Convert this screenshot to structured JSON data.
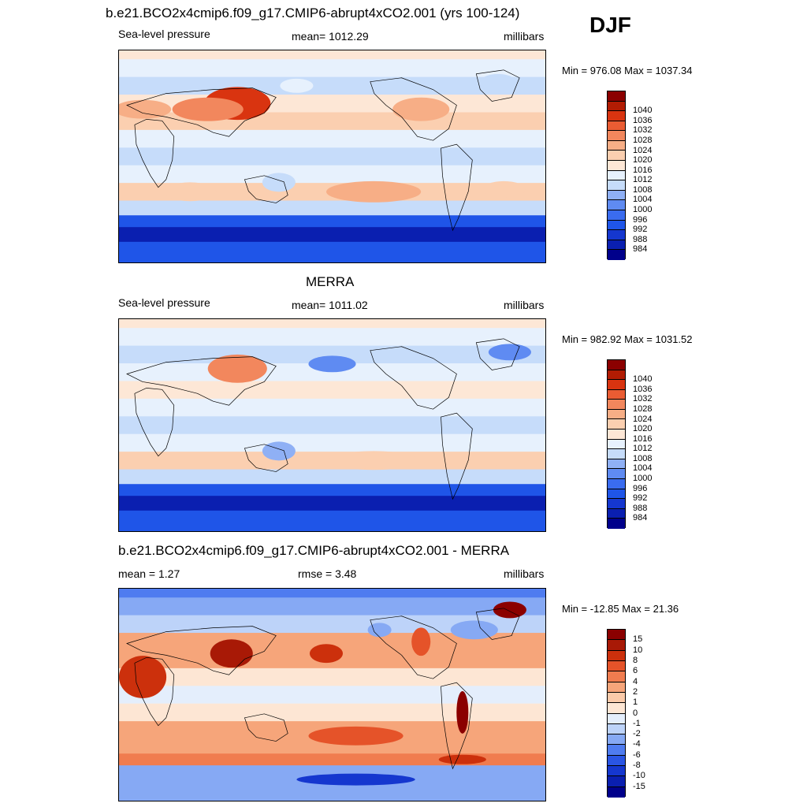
{
  "season": "DJF",
  "palettes": {
    "slp": [
      "#00008b",
      "#0a1fb0",
      "#1537cf",
      "#1f55e8",
      "#3a6cf0",
      "#5f8bf2",
      "#8fb0f5",
      "#c6dcfa",
      "#e7f1fd",
      "#fde7d6",
      "#fbcfb0",
      "#f7ae86",
      "#f2875d",
      "#ea5c33",
      "#d93410",
      "#b21c03",
      "#8b0000"
    ],
    "diff": [
      "#00008b",
      "#0a1fb0",
      "#1537cf",
      "#2a55e4",
      "#4f7cf0",
      "#86a9f4",
      "#bdd3f9",
      "#e4eefc",
      "#fde6d4",
      "#fbcaa9",
      "#f6a57a",
      "#f07c4f",
      "#e55329",
      "#cc300c",
      "#a81906",
      "#8b0000"
    ]
  },
  "panels": [
    {
      "title": "b.e21.BCO2x4cmip6.f09_g17.CMIP6-abrupt4xCO2.001 (yrs 100-124)",
      "left_label": "Sea-level pressure",
      "center_label": "mean= 1012.29",
      "right_label": "millibars",
      "minmax": "Min = 976.08 Max = 1037.34",
      "palette": "slp",
      "levels": [
        "984",
        "988",
        "992",
        "996",
        "1000",
        "1004",
        "1008",
        "1012",
        "1016",
        "1020",
        "1024",
        "1028",
        "1032",
        "1036",
        "1040"
      ],
      "zonal_profile": [
        {
          "lat": 90,
          "v": 1016
        },
        {
          "lat": 75,
          "v": 1012
        },
        {
          "lat": 60,
          "v": 1008
        },
        {
          "lat": 45,
          "v": 1017
        },
        {
          "lat": 30,
          "v": 1020
        },
        {
          "lat": 15,
          "v": 1013
        },
        {
          "lat": 0,
          "v": 1010
        },
        {
          "lat": -15,
          "v": 1013
        },
        {
          "lat": -30,
          "v": 1021
        },
        {
          "lat": -45,
          "v": 1010
        },
        {
          "lat": -55,
          "v": 994
        },
        {
          "lat": -65,
          "v": 984
        },
        {
          "lat": -80,
          "v": 994
        }
      ],
      "features": [
        {
          "lon": 100,
          "lat": 45,
          "rx": 28,
          "ry": 14,
          "v": 1037
        },
        {
          "lon": 75,
          "lat": 40,
          "rx": 30,
          "ry": 10,
          "v": 1030
        },
        {
          "lon": 20,
          "lat": 40,
          "rx": 24,
          "ry": 8,
          "v": 1025
        },
        {
          "lon": 255,
          "lat": 40,
          "rx": 24,
          "ry": 10,
          "v": 1025
        },
        {
          "lon": 150,
          "lat": 60,
          "rx": 14,
          "ry": 6,
          "v": 1014
        },
        {
          "lon": 320,
          "lat": 62,
          "rx": 16,
          "ry": 8,
          "v": 1009
        },
        {
          "lon": 215,
          "lat": -30,
          "rx": 40,
          "ry": 9,
          "v": 1024
        },
        {
          "lon": 60,
          "lat": -30,
          "rx": 22,
          "ry": 8,
          "v": 1022
        },
        {
          "lon": 325,
          "lat": -28,
          "rx": 18,
          "ry": 7,
          "v": 1022
        },
        {
          "lon": 135,
          "lat": -22,
          "rx": 14,
          "ry": 8,
          "v": 1008
        }
      ]
    },
    {
      "title": "MERRA",
      "left_label": "Sea-level pressure",
      "center_label": "mean= 1011.02",
      "right_label": "millibars",
      "minmax": "Min = 982.92 Max = 1031.52",
      "palette": "slp",
      "levels": [
        "984",
        "988",
        "992",
        "996",
        "1000",
        "1004",
        "1008",
        "1012",
        "1016",
        "1020",
        "1024",
        "1028",
        "1032",
        "1036",
        "1040"
      ],
      "zonal_profile": [
        {
          "lat": 90,
          "v": 1018
        },
        {
          "lat": 75,
          "v": 1014
        },
        {
          "lat": 60,
          "v": 1010
        },
        {
          "lat": 45,
          "v": 1015
        },
        {
          "lat": 30,
          "v": 1019
        },
        {
          "lat": 15,
          "v": 1012
        },
        {
          "lat": 0,
          "v": 1010
        },
        {
          "lat": -15,
          "v": 1012
        },
        {
          "lat": -30,
          "v": 1020
        },
        {
          "lat": -45,
          "v": 1009
        },
        {
          "lat": -55,
          "v": 992
        },
        {
          "lat": -65,
          "v": 985
        },
        {
          "lat": -80,
          "v": 993
        }
      ],
      "features": [
        {
          "lon": 100,
          "lat": 48,
          "rx": 25,
          "ry": 12,
          "v": 1031
        },
        {
          "lon": 180,
          "lat": 52,
          "rx": 20,
          "ry": 7,
          "v": 1000
        },
        {
          "lon": 330,
          "lat": 62,
          "rx": 18,
          "ry": 7,
          "v": 1000
        },
        {
          "lon": 215,
          "lat": -30,
          "rx": 38,
          "ry": 8,
          "v": 1023
        },
        {
          "lon": 330,
          "lat": -30,
          "rx": 16,
          "ry": 6,
          "v": 1023
        },
        {
          "lon": 135,
          "lat": -22,
          "rx": 14,
          "ry": 8,
          "v": 1006
        }
      ]
    },
    {
      "title": "b.e21.BCO2x4cmip6.f09_g17.CMIP6-abrupt4xCO2.001 - MERRA",
      "left_label": "mean =   1.27",
      "center_label": "rmse =   3.48",
      "right_label": "millibars",
      "minmax": "Min = -12.85 Max =  21.36",
      "palette": "diff",
      "levels": [
        "-15",
        "-10",
        "-8",
        "-6",
        "-4",
        "-2",
        "-1",
        "0",
        "1",
        "2",
        "4",
        "6",
        "8",
        "10",
        "15"
      ],
      "zonal_profile": [
        {
          "lat": 90,
          "v": -6
        },
        {
          "lat": 75,
          "v": -4
        },
        {
          "lat": 60,
          "v": -2
        },
        {
          "lat": 45,
          "v": 2
        },
        {
          "lat": 30,
          "v": 2
        },
        {
          "lat": 15,
          "v": 0.5
        },
        {
          "lat": 0,
          "v": -0.5
        },
        {
          "lat": -15,
          "v": 0.5
        },
        {
          "lat": -30,
          "v": 3
        },
        {
          "lat": -45,
          "v": 3
        },
        {
          "lat": -55,
          "v": 5
        },
        {
          "lat": -65,
          "v": -3
        },
        {
          "lat": -80,
          "v": -4
        }
      ],
      "features": [
        {
          "lon": 290,
          "lat": -15,
          "rx": 5,
          "ry": 18,
          "v": 15
        },
        {
          "lon": 330,
          "lat": 72,
          "rx": 14,
          "ry": 7,
          "v": 15
        },
        {
          "lon": 95,
          "lat": 35,
          "rx": 18,
          "ry": 12,
          "v": 10
        },
        {
          "lon": 20,
          "lat": 15,
          "rx": 20,
          "ry": 18,
          "v": 8
        },
        {
          "lon": 175,
          "lat": 35,
          "rx": 14,
          "ry": 8,
          "v": 8
        },
        {
          "lon": 255,
          "lat": 45,
          "rx": 8,
          "ry": 12,
          "v": 6
        },
        {
          "lon": 220,
          "lat": 55,
          "rx": 10,
          "ry": 6,
          "v": -4
        },
        {
          "lon": 300,
          "lat": 55,
          "rx": 20,
          "ry": 8,
          "v": -4
        },
        {
          "lon": 200,
          "lat": -35,
          "rx": 40,
          "ry": 8,
          "v": 6
        },
        {
          "lon": 290,
          "lat": -55,
          "rx": 20,
          "ry": 4,
          "v": 8
        },
        {
          "lon": 200,
          "lat": -72,
          "rx": 50,
          "ry": 5,
          "v": -10
        }
      ]
    }
  ]
}
